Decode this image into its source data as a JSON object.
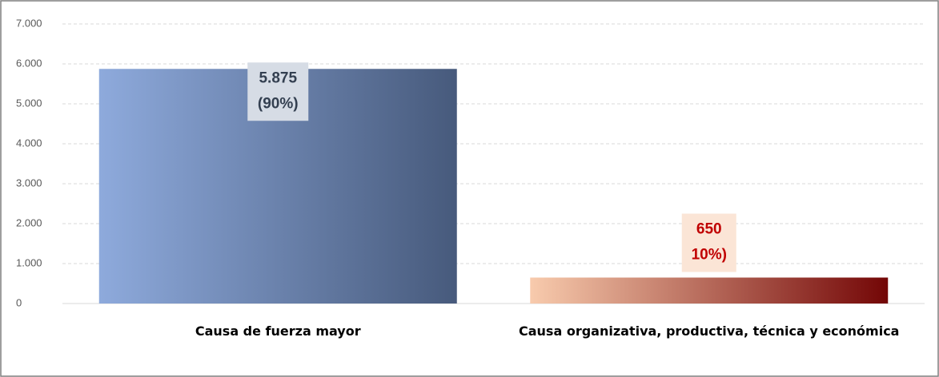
{
  "chart_data": {
    "type": "bar",
    "categories": [
      "Causa de fuerza mayor",
      "Causa organizativa, productiva, técnica y económica"
    ],
    "values": [
      5875,
      650
    ],
    "value_labels": [
      "5.875",
      "650"
    ],
    "share_labels": [
      "(90%)",
      "10%)"
    ],
    "colors": [
      [
        "#8eaadc",
        "#475a7c"
      ],
      [
        "#f8cbad",
        "#730606"
      ]
    ],
    "label_colors": [
      "#333f50",
      "#c00000"
    ],
    "label_backgrounds": [
      "#d6dce5",
      "#fbe5d6"
    ],
    "ylim": [
      0,
      7000
    ],
    "yticks": [
      0,
      {
        "value": 1000,
        "label": "1.000"
      },
      {
        "value": 2000,
        "label": "2.000"
      },
      {
        "value": 3000,
        "label": "3.000"
      },
      {
        "value": 4000,
        "label": "4.000"
      },
      {
        "value": 5000,
        "label": "5.000"
      },
      {
        "value": 6000,
        "label": "6.000"
      },
      {
        "value": 7000,
        "label": "7.000"
      }
    ],
    "grid": true
  }
}
